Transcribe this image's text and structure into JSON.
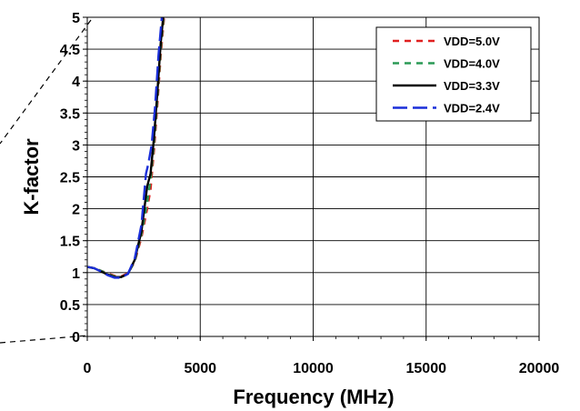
{
  "chart_data": {
    "type": "line",
    "title": "",
    "xlabel": "Frequency (MHz)",
    "ylabel": "K-factor",
    "xlim": [
      0,
      20000
    ],
    "ylim": [
      0,
      5
    ],
    "xticks": [
      0,
      5000,
      10000,
      15000,
      20000
    ],
    "xtick_labels": [
      "0",
      "5000",
      "10000",
      "15000",
      "20000"
    ],
    "yticks": [
      0,
      0.5,
      1,
      1.5,
      2,
      2.5,
      3,
      3.5,
      4,
      4.5,
      5
    ],
    "ytick_labels": [
      "0",
      "0.5",
      "1",
      "1.5",
      "2",
      "2.5",
      "3",
      "3.5",
      "4",
      "4.5",
      "5"
    ],
    "grid": true,
    "legend_position": "top-right",
    "series": [
      {
        "name": "VDD=5.0V",
        "color": "#e02020",
        "dash": "dashed",
        "x": [
          0,
          300,
          600,
          900,
          1200,
          1500,
          1800,
          2100,
          2400,
          2650,
          2800,
          2950,
          3100,
          3250,
          3400
        ],
        "y": [
          1.09,
          1.07,
          1.03,
          0.99,
          0.95,
          0.94,
          0.99,
          1.17,
          1.55,
          2.0,
          2.3,
          2.9,
          3.6,
          4.4,
          5.0
        ]
      },
      {
        "name": "VDD=4.0V",
        "color": "#2a9a55",
        "dash": "dashed",
        "x": [
          0,
          300,
          600,
          900,
          1200,
          1500,
          1800,
          2100,
          2400,
          2650,
          2800,
          2950,
          3100,
          3250,
          3380
        ],
        "y": [
          1.09,
          1.07,
          1.03,
          0.98,
          0.94,
          0.93,
          0.98,
          1.18,
          1.6,
          2.1,
          2.45,
          3.0,
          3.7,
          4.5,
          5.0
        ]
      },
      {
        "name": "VDD=3.3V",
        "color": "#000000",
        "dash": "solid",
        "x": [
          0,
          300,
          600,
          900,
          1200,
          1500,
          1800,
          2100,
          2400,
          2650,
          2800,
          2950,
          3100,
          3250,
          3360
        ],
        "y": [
          1.09,
          1.07,
          1.02,
          0.97,
          0.93,
          0.93,
          0.98,
          1.2,
          1.65,
          2.35,
          2.55,
          3.1,
          3.8,
          4.6,
          5.0
        ]
      },
      {
        "name": "VDD=2.4V",
        "color": "#1a2ed8",
        "dash": "longdash",
        "x": [
          0,
          300,
          600,
          900,
          1200,
          1500,
          1800,
          2100,
          2400,
          2600,
          2700,
          2850,
          3000,
          3150,
          3300
        ],
        "y": [
          1.09,
          1.07,
          1.02,
          0.96,
          0.92,
          0.92,
          0.98,
          1.22,
          1.75,
          2.55,
          2.7,
          3.0,
          3.6,
          4.4,
          5.0
        ]
      }
    ]
  }
}
